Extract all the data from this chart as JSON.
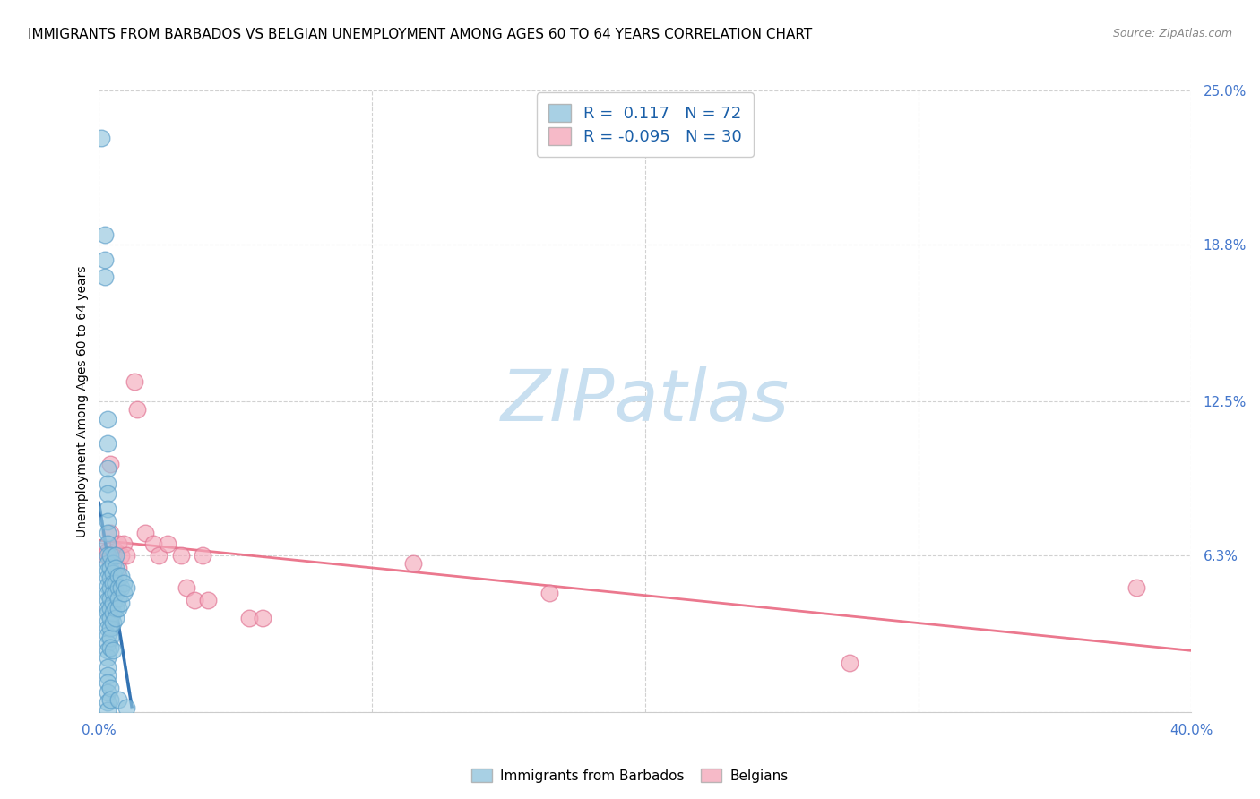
{
  "title": "IMMIGRANTS FROM BARBADOS VS BELGIAN UNEMPLOYMENT AMONG AGES 60 TO 64 YEARS CORRELATION CHART",
  "source": "Source: ZipAtlas.com",
  "ylabel": "Unemployment Among Ages 60 to 64 years",
  "xlim": [
    0.0,
    0.4
  ],
  "ylim": [
    0.0,
    0.25
  ],
  "xtick_positions": [
    0.0,
    0.1,
    0.2,
    0.3,
    0.4
  ],
  "xticklabels": [
    "0.0%",
    "",
    "",
    "",
    "40.0%"
  ],
  "ytick_positions": [
    0.0,
    0.063,
    0.125,
    0.188,
    0.25
  ],
  "ytick_labels": [
    "",
    "6.3%",
    "12.5%",
    "18.8%",
    "25.0%"
  ],
  "legend_labels": [
    "Immigrants from Barbados",
    "Belgians"
  ],
  "R_blue": 0.117,
  "N_blue": 72,
  "R_pink": -0.095,
  "N_pink": 30,
  "blue_color": "#92c5de",
  "blue_edge": "#5b9ec9",
  "pink_color": "#f4a9bb",
  "pink_edge": "#e07090",
  "blue_trend_color": "#2166ac",
  "blue_trend_dash_color": "#9ecae1",
  "pink_trend_color": "#e8607a",
  "watermark_color": "#c8dff0",
  "tick_color": "#4477cc",
  "grid_color": "#cccccc",
  "title_fontsize": 11,
  "axis_label_fontsize": 10,
  "tick_fontsize": 11,
  "blue_scatter": [
    [
      0.001,
      0.231
    ],
    [
      0.002,
      0.192
    ],
    [
      0.002,
      0.182
    ],
    [
      0.002,
      0.175
    ],
    [
      0.003,
      0.118
    ],
    [
      0.003,
      0.108
    ],
    [
      0.003,
      0.098
    ],
    [
      0.003,
      0.092
    ],
    [
      0.003,
      0.088
    ],
    [
      0.003,
      0.082
    ],
    [
      0.003,
      0.077
    ],
    [
      0.003,
      0.072
    ],
    [
      0.003,
      0.068
    ],
    [
      0.003,
      0.063
    ],
    [
      0.003,
      0.06
    ],
    [
      0.003,
      0.057
    ],
    [
      0.003,
      0.054
    ],
    [
      0.003,
      0.051
    ],
    [
      0.003,
      0.048
    ],
    [
      0.003,
      0.045
    ],
    [
      0.003,
      0.042
    ],
    [
      0.003,
      0.04
    ],
    [
      0.003,
      0.037
    ],
    [
      0.003,
      0.034
    ],
    [
      0.003,
      0.031
    ],
    [
      0.003,
      0.028
    ],
    [
      0.003,
      0.025
    ],
    [
      0.003,
      0.022
    ],
    [
      0.003,
      0.018
    ],
    [
      0.003,
      0.015
    ],
    [
      0.003,
      0.012
    ],
    [
      0.003,
      0.008
    ],
    [
      0.003,
      0.004
    ],
    [
      0.003,
      0.001
    ],
    [
      0.004,
      0.063
    ],
    [
      0.004,
      0.058
    ],
    [
      0.004,
      0.054
    ],
    [
      0.004,
      0.05
    ],
    [
      0.004,
      0.046
    ],
    [
      0.004,
      0.042
    ],
    [
      0.004,
      0.038
    ],
    [
      0.004,
      0.034
    ],
    [
      0.004,
      0.03
    ],
    [
      0.004,
      0.026
    ],
    [
      0.004,
      0.01
    ],
    [
      0.004,
      0.005
    ],
    [
      0.005,
      0.06
    ],
    [
      0.005,
      0.056
    ],
    [
      0.005,
      0.052
    ],
    [
      0.005,
      0.048
    ],
    [
      0.005,
      0.044
    ],
    [
      0.005,
      0.04
    ],
    [
      0.005,
      0.036
    ],
    [
      0.005,
      0.025
    ],
    [
      0.006,
      0.063
    ],
    [
      0.006,
      0.058
    ],
    [
      0.006,
      0.052
    ],
    [
      0.006,
      0.048
    ],
    [
      0.006,
      0.042
    ],
    [
      0.006,
      0.038
    ],
    [
      0.007,
      0.055
    ],
    [
      0.007,
      0.05
    ],
    [
      0.007,
      0.046
    ],
    [
      0.007,
      0.042
    ],
    [
      0.007,
      0.005
    ],
    [
      0.008,
      0.055
    ],
    [
      0.008,
      0.05
    ],
    [
      0.008,
      0.044
    ],
    [
      0.009,
      0.052
    ],
    [
      0.009,
      0.048
    ],
    [
      0.01,
      0.05
    ],
    [
      0.01,
      0.002
    ]
  ],
  "pink_scatter": [
    [
      0.001,
      0.065
    ],
    [
      0.002,
      0.063
    ],
    [
      0.003,
      0.065
    ],
    [
      0.004,
      0.1
    ],
    [
      0.004,
      0.072
    ],
    [
      0.004,
      0.062
    ],
    [
      0.005,
      0.063
    ],
    [
      0.006,
      0.065
    ],
    [
      0.007,
      0.068
    ],
    [
      0.007,
      0.058
    ],
    [
      0.008,
      0.063
    ],
    [
      0.009,
      0.068
    ],
    [
      0.01,
      0.063
    ],
    [
      0.013,
      0.133
    ],
    [
      0.014,
      0.122
    ],
    [
      0.017,
      0.072
    ],
    [
      0.02,
      0.068
    ],
    [
      0.022,
      0.063
    ],
    [
      0.025,
      0.068
    ],
    [
      0.03,
      0.063
    ],
    [
      0.032,
      0.05
    ],
    [
      0.035,
      0.045
    ],
    [
      0.038,
      0.063
    ],
    [
      0.04,
      0.045
    ],
    [
      0.055,
      0.038
    ],
    [
      0.06,
      0.038
    ],
    [
      0.115,
      0.06
    ],
    [
      0.165,
      0.048
    ],
    [
      0.275,
      0.02
    ],
    [
      0.38,
      0.05
    ]
  ]
}
